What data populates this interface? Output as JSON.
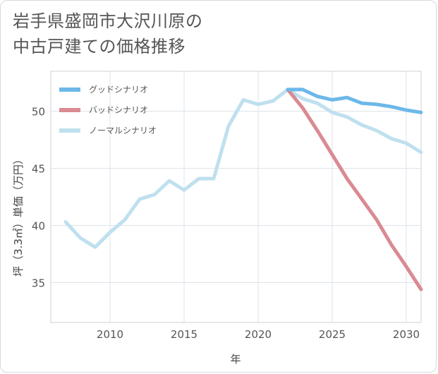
{
  "title_line1": "岩手県盛岡市大沢川原の",
  "title_line2": "中古戸建ての価格推移",
  "chart_data": {
    "type": "line",
    "xlabel": "年",
    "ylabel": "坪（3.3㎡）単価（万円）",
    "xlim": [
      2006,
      2031
    ],
    "ylim": [
      31.5,
      53.5
    ],
    "xticks": [
      2010,
      2015,
      2020,
      2025,
      2030
    ],
    "yticks": [
      35,
      40,
      45,
      50
    ],
    "grid": true,
    "legend_position": "top-left",
    "series": [
      {
        "name": "グッドシナリオ",
        "color": "#6cb8ea",
        "x": [
          2022,
          2023,
          2024,
          2025,
          2026,
          2027,
          2028,
          2029,
          2030,
          2031
        ],
        "y": [
          51.9,
          51.9,
          51.3,
          51.0,
          51.2,
          50.7,
          50.6,
          50.4,
          50.1,
          49.9
        ]
      },
      {
        "name": "バッドシナリオ",
        "color": "#da8a92",
        "x": [
          2022,
          2023,
          2024,
          2025,
          2026,
          2027,
          2028,
          2029,
          2030,
          2031
        ],
        "y": [
          51.9,
          50.3,
          48.3,
          46.2,
          44.1,
          42.3,
          40.5,
          38.3,
          36.4,
          34.4
        ]
      },
      {
        "name": "ノーマルシナリオ",
        "color": "#bfe0ee",
        "x": [
          2007,
          2008,
          2009,
          2010,
          2011,
          2012,
          2013,
          2014,
          2015,
          2016,
          2017,
          2018,
          2019,
          2020,
          2021,
          2022,
          2023,
          2024,
          2025,
          2026,
          2027,
          2028,
          2029,
          2030,
          2031
        ],
        "y": [
          40.3,
          38.9,
          38.1,
          39.4,
          40.5,
          42.3,
          42.7,
          43.9,
          43.1,
          44.1,
          44.1,
          48.7,
          51.0,
          50.6,
          50.9,
          51.9,
          51.1,
          50.7,
          49.9,
          49.5,
          48.8,
          48.3,
          47.6,
          47.2,
          46.4
        ]
      }
    ]
  }
}
